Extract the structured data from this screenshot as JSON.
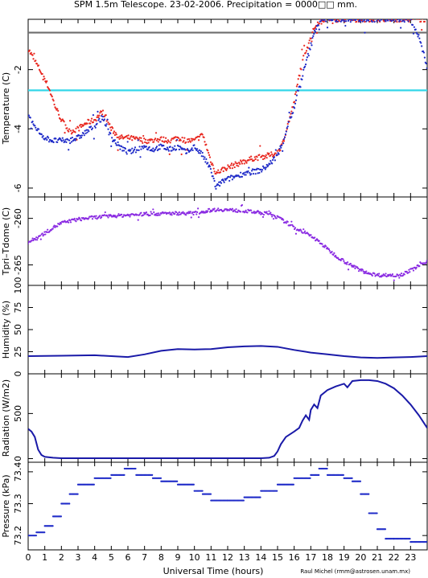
{
  "title": "SPM 1.5m Telescope. 23-02-2006. Precipitation = 0000□□ mm.",
  "credit": "Raul Michel (rmm@astrosen.unam.mx)",
  "colors": {
    "axis": "#000000",
    "red": "#e8271f",
    "blue": "#1f2bc8",
    "purple": "#8a2be2",
    "navy": "#1a1aa8",
    "cyan": "#33d6e8",
    "gray": "#6e6e6e"
  },
  "chart_data": [
    {
      "type": "scatter",
      "ylabel": "Temperature (C)",
      "xlim": [
        0,
        24
      ],
      "ylim": [
        -6.3,
        -0.3
      ],
      "yticks": [
        -6,
        -4,
        -2
      ],
      "hlines": [
        {
          "y": -0.75,
          "color": "#6e6e6e"
        },
        {
          "y": -2.7,
          "color": "#33d6e8"
        }
      ],
      "series": [
        {
          "color": "#e8271f",
          "x": [
            0.0,
            0.3,
            0.7,
            1.0,
            1.3,
            1.6,
            2.0,
            2.5,
            3.0,
            3.5,
            4.0,
            4.5,
            5.0,
            5.5,
            6.0,
            6.5,
            7.0,
            7.5,
            8.0,
            8.5,
            9.0,
            9.5,
            10.0,
            10.5,
            11.0,
            11.3,
            11.6,
            12.0,
            12.5,
            13.0,
            13.5,
            14.0,
            14.5,
            15.0,
            15.3,
            15.6,
            16.0,
            16.3,
            16.6,
            17.0,
            17.3,
            17.6,
            17.9,
            18.2,
            18.5,
            19.0,
            19.5,
            20.0,
            20.5,
            21.0,
            21.5,
            22.0,
            22.5,
            23.0,
            23.5,
            24.0
          ],
          "y": [
            -1.3,
            -1.6,
            -2.0,
            -2.3,
            -2.7,
            -3.2,
            -3.7,
            -4.1,
            -4.0,
            -3.8,
            -3.7,
            -3.4,
            -4.0,
            -4.3,
            -4.3,
            -4.35,
            -4.4,
            -4.4,
            -4.35,
            -4.4,
            -4.3,
            -4.4,
            -4.4,
            -4.2,
            -5.1,
            -5.5,
            -5.4,
            -5.3,
            -5.2,
            -5.1,
            -5.0,
            -4.95,
            -4.9,
            -4.8,
            -4.5,
            -3.9,
            -3.1,
            -2.2,
            -1.5,
            -0.9,
            -0.5,
            -0.3,
            -0.3,
            -0.3,
            -0.3,
            -0.3,
            -0.3,
            -0.3,
            -0.3,
            -0.3,
            -0.3,
            -0.3,
            -0.3,
            -0.3,
            -0.3,
            -0.3
          ]
        },
        {
          "color": "#1f2bc8",
          "x": [
            0.0,
            0.5,
            1.0,
            1.5,
            2.0,
            2.5,
            3.0,
            3.5,
            4.0,
            4.5,
            5.0,
            5.5,
            6.0,
            6.5,
            7.0,
            7.5,
            8.0,
            8.5,
            9.0,
            9.5,
            10.0,
            10.5,
            11.0,
            11.3,
            11.6,
            12.0,
            12.5,
            13.0,
            13.5,
            14.0,
            14.5,
            15.0,
            15.3,
            15.6,
            16.0,
            16.3,
            16.6,
            17.0,
            17.3,
            17.6,
            18.0,
            18.5,
            19.0,
            19.5,
            20.0,
            20.5,
            21.0,
            21.5,
            22.0,
            22.5,
            23.0,
            23.5,
            24.0
          ],
          "y": [
            -3.6,
            -4.0,
            -4.3,
            -4.4,
            -4.4,
            -4.4,
            -4.3,
            -4.1,
            -3.9,
            -3.6,
            -4.3,
            -4.6,
            -4.8,
            -4.7,
            -4.6,
            -4.7,
            -4.6,
            -4.7,
            -4.6,
            -4.8,
            -4.6,
            -4.9,
            -5.4,
            -6.0,
            -5.8,
            -5.7,
            -5.6,
            -5.5,
            -5.45,
            -5.4,
            -5.2,
            -4.9,
            -4.5,
            -3.9,
            -3.3,
            -2.6,
            -2.0,
            -1.2,
            -0.6,
            -0.3,
            -0.3,
            -0.3,
            -0.3,
            -0.3,
            -0.3,
            -0.3,
            -0.3,
            -0.3,
            -0.3,
            -0.3,
            -0.3,
            -0.9,
            -1.9
          ]
        }
      ]
    },
    {
      "type": "scatter",
      "ylabel": "Tpri–Tdome (C)",
      "xlim": [
        0,
        24
      ],
      "ylim": [
        -267.2,
        -257.7
      ],
      "yticks": [
        -265,
        -260
      ],
      "series": [
        {
          "color": "#8a2be2",
          "x": [
            0.0,
            0.5,
            1.0,
            1.5,
            2.0,
            2.5,
            3.0,
            4.0,
            5.0,
            6.0,
            7.0,
            8.0,
            9.0,
            10.0,
            10.5,
            11.0,
            11.5,
            12.0,
            13.0,
            14.0,
            14.5,
            15.0,
            15.5,
            16.0,
            16.5,
            17.0,
            17.5,
            18.0,
            18.5,
            19.0,
            19.5,
            20.0,
            20.5,
            21.0,
            22.0,
            22.5,
            23.0,
            23.5,
            24.0
          ],
          "y": [
            -262.6,
            -262.1,
            -261.6,
            -261.0,
            -260.5,
            -260.3,
            -260.1,
            -259.9,
            -259.75,
            -259.65,
            -259.55,
            -259.5,
            -259.45,
            -259.45,
            -259.3,
            -259.1,
            -259.05,
            -259.1,
            -259.2,
            -259.4,
            -259.5,
            -259.9,
            -260.4,
            -261.0,
            -261.4,
            -261.9,
            -262.5,
            -263.3,
            -264.0,
            -264.6,
            -265.1,
            -265.6,
            -265.9,
            -266.1,
            -266.1,
            -266.0,
            -265.6,
            -265.1,
            -264.6
          ]
        }
      ]
    },
    {
      "type": "line",
      "ylabel": "Humidity (%)",
      "xlim": [
        0,
        24
      ],
      "ylim": [
        0,
        100
      ],
      "yticks": [
        0,
        25,
        50,
        75,
        100
      ],
      "series": [
        {
          "color": "#1a1aa8",
          "x": [
            0,
            2,
            4,
            5,
            6,
            7,
            8,
            9,
            10,
            11,
            12,
            13,
            14,
            15,
            16,
            17,
            18,
            19,
            20,
            21,
            22,
            23,
            24
          ],
          "y": [
            20,
            20.5,
            21,
            20,
            19,
            22,
            26,
            28,
            27.5,
            28,
            30,
            31,
            31.5,
            30.5,
            27,
            24,
            22,
            20,
            18.5,
            18,
            18.5,
            19,
            20
          ]
        }
      ]
    },
    {
      "type": "line",
      "ylabel": "Radiation (W/m2)",
      "xlim": [
        0,
        24
      ],
      "ylim": [
        -40,
        940
      ],
      "yticks": [
        0,
        500
      ],
      "series": [
        {
          "color": "#1a1aa8",
          "x": [
            0,
            0.2,
            0.4,
            0.6,
            0.8,
            1.0,
            1.5,
            2,
            4,
            6,
            8,
            10,
            12,
            14,
            14.5,
            14.8,
            15.0,
            15.2,
            15.5,
            16.0,
            16.3,
            16.5,
            16.7,
            16.9,
            17.0,
            17.2,
            17.4,
            17.6,
            18.0,
            18.5,
            19.0,
            19.2,
            19.5,
            20.0,
            20.5,
            21,
            21.5,
            22,
            22.5,
            23,
            23.5,
            24
          ],
          "y": [
            330,
            300,
            240,
            100,
            40,
            20,
            10,
            5,
            5,
            5,
            5,
            5,
            5,
            5,
            10,
            30,
            80,
            160,
            240,
            300,
            340,
            420,
            480,
            430,
            540,
            600,
            560,
            700,
            760,
            800,
            830,
            790,
            860,
            870,
            870,
            860,
            830,
            780,
            700,
            600,
            480,
            340
          ]
        }
      ]
    },
    {
      "type": "scatter",
      "ylabel": "Pressure (kPa)",
      "xlabel": "Universal Time (hours)",
      "xlim": [
        0,
        24
      ],
      "ylim": [
        73.155,
        73.43
      ],
      "yticks": [
        73.2,
        73.3,
        73.4
      ],
      "xticks": [
        0,
        1,
        2,
        3,
        4,
        5,
        6,
        7,
        8,
        9,
        10,
        11,
        12,
        13,
        14,
        15,
        16,
        17,
        18,
        19,
        20,
        21,
        22,
        23
      ],
      "series": [
        {
          "color": "#1f2bc8",
          "x": [
            0,
            0.5,
            1,
            1.5,
            2,
            2.5,
            3,
            4,
            5,
            5.8,
            6.5,
            7.5,
            8,
            9,
            10,
            10.5,
            11,
            12,
            13,
            14,
            15,
            16,
            17,
            17.5,
            18,
            19,
            19.5,
            20,
            20.5,
            21,
            21.5,
            22,
            23,
            24
          ],
          "y": [
            73.2,
            73.21,
            73.23,
            73.26,
            73.3,
            73.33,
            73.36,
            73.38,
            73.39,
            73.41,
            73.39,
            73.38,
            73.37,
            73.36,
            73.34,
            73.33,
            73.31,
            73.31,
            73.32,
            73.34,
            73.36,
            73.38,
            73.39,
            73.41,
            73.39,
            73.38,
            73.37,
            73.33,
            73.27,
            73.22,
            73.19,
            73.19,
            73.18,
            73.19
          ]
        }
      ]
    }
  ]
}
